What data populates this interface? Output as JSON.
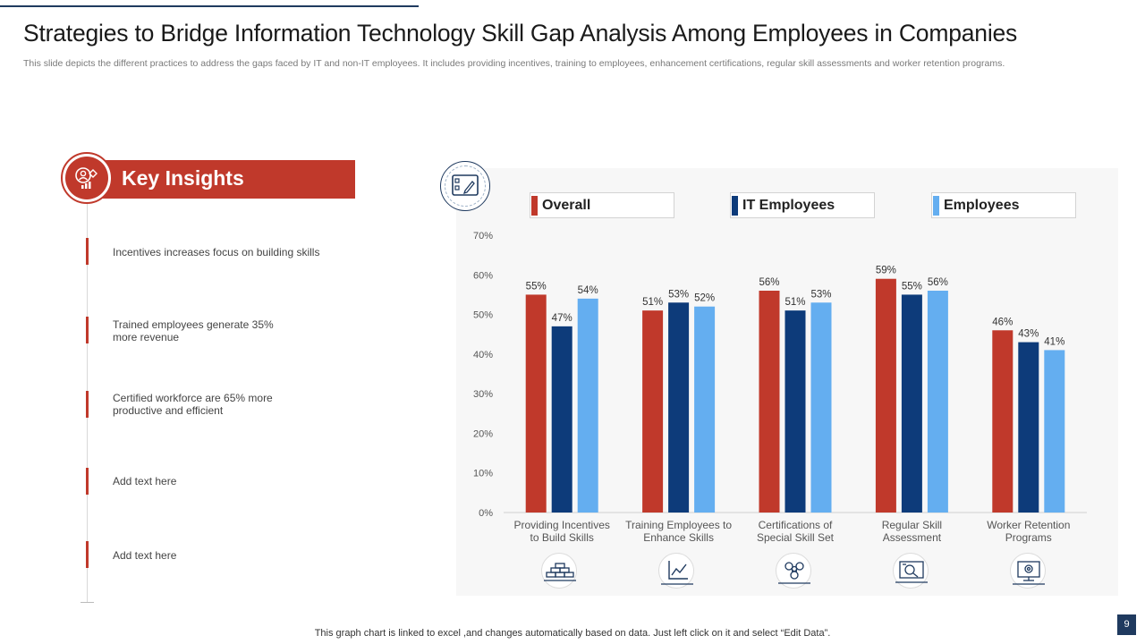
{
  "title": "Strategies to Bridge Information Technology Skill Gap Analysis Among Employees in Companies",
  "subtitle": "This slide depicts the different practices to address the gaps faced by IT and non-IT employees. It includes providing incentives, training to employees, enhancement certifications, regular skill assessments and worker retention programs.",
  "key_insights": {
    "title": "Key Insights",
    "items": [
      "Incentives increases focus on building skills",
      "Trained employees generate 35% more revenue",
      "Certified workforce are 65% more productive and efficient",
      "Add text here",
      "Add text here"
    ]
  },
  "colors": {
    "overall": "#c0392b",
    "it": "#0d3b7a",
    "employees": "#64aef0",
    "accent": "#c0392b",
    "navy": "#1f3a5f"
  },
  "chart_data": {
    "type": "bar",
    "title": "",
    "categories": [
      "Providing Incentives to Build Skills",
      "Training Employees to Enhance Skills",
      "Certifications of Special Skill Set",
      "Regular Skill Assessment",
      "Worker Retention Programs"
    ],
    "series": [
      {
        "name": "Overall",
        "values": [
          55,
          51,
          56,
          59,
          46
        ]
      },
      {
        "name": "IT Employees",
        "values": [
          47,
          53,
          51,
          55,
          43
        ]
      },
      {
        "name": "Employees",
        "values": [
          54,
          52,
          53,
          56,
          41
        ]
      }
    ],
    "ylim": [
      0,
      70
    ],
    "yticks": [
      0,
      10,
      20,
      30,
      40,
      50,
      60,
      70
    ],
    "value_suffix": "%",
    "xlabel": "",
    "ylabel": "",
    "legend_position": "top"
  },
  "category_icons": [
    "bricks-icon",
    "line-chart-icon",
    "network-icon",
    "assessment-monitor-icon",
    "monitor-gear-icon"
  ],
  "footer": "This graph chart is linked to excel ,and changes automatically based on data. Just left click on it and select “Edit Data”.",
  "page_number": "9"
}
